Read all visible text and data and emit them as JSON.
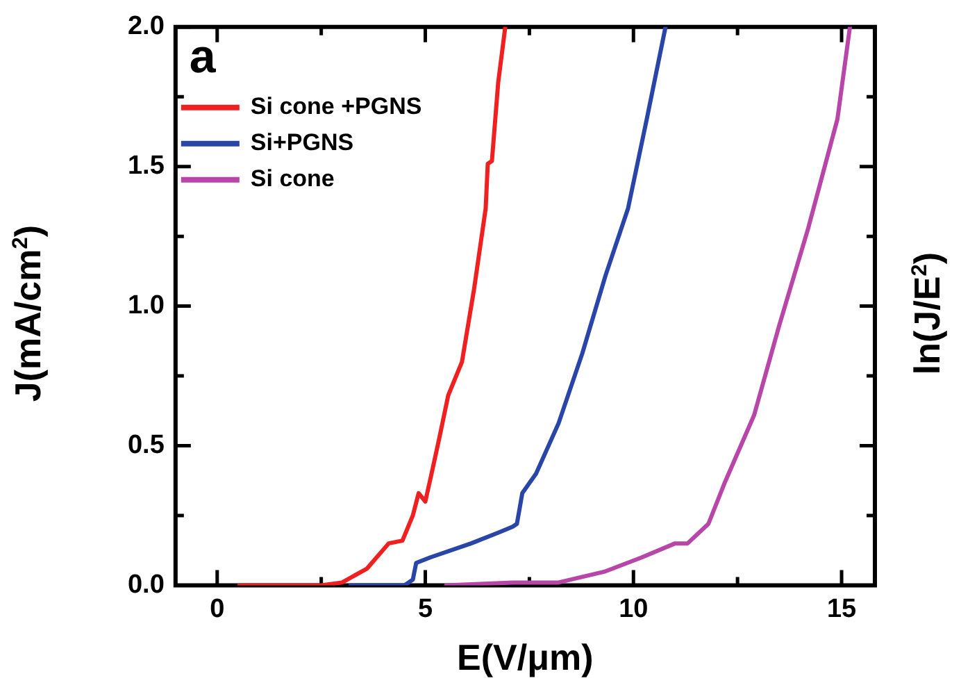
{
  "chart_data": {
    "type": "line",
    "xlabel": "E(V/μm)",
    "ylabel": "J(mA/cm$^{2}$)",
    "y2label": "ln(J/E$^{2}$)",
    "annotations": [
      "a"
    ],
    "xlim": [
      -1,
      15.8
    ],
    "xticks": [
      0,
      {
        "value": 2.5,
        "label": null
      },
      5,
      {
        "value": 7.5,
        "label": null
      },
      10,
      {
        "value": 12.5,
        "label": null
      },
      15
    ],
    "ylim": [
      0,
      2.0
    ],
    "yticks": [
      {
        "value": 0,
        "label": "0.0"
      },
      {
        "value": 0.25,
        "label": null
      },
      {
        "value": 0.5,
        "label": "0.5"
      },
      {
        "value": 0.75,
        "label": null
      },
      {
        "value": 1.0,
        "label": "1.0"
      },
      {
        "value": 1.25,
        "label": null
      },
      {
        "value": 1.5,
        "label": "1.5"
      },
      {
        "value": 1.75,
        "label": null
      },
      {
        "value": 2.0,
        "label": "2.0"
      }
    ],
    "grid": false,
    "legend": "top left",
    "marker": "none",
    "line_style": "solid",
    "series": [
      {
        "name": "Si cone +PGNS",
        "color": "#f02020",
        "x": [
          0.53,
          2.5,
          3.0,
          3.12,
          3.6,
          4.12,
          4.45,
          4.7,
          4.84,
          5.0,
          5.15,
          5.34,
          5.55,
          5.88,
          6.17,
          6.45,
          6.5,
          6.6,
          6.75,
          6.92
        ],
        "values": [
          0,
          0,
          0.01,
          0.02,
          0.06,
          0.15,
          0.16,
          0.25,
          0.33,
          0.3,
          0.4,
          0.53,
          0.68,
          0.8,
          1.06,
          1.35,
          1.51,
          1.52,
          1.8,
          2.0
        ]
      },
      {
        "name": "Si+PGNS",
        "color": "#2a45a8",
        "x": [
          3.2,
          4.5,
          4.7,
          4.78,
          5.12,
          6.1,
          6.78,
          7.1,
          7.2,
          7.33,
          7.66,
          8.2,
          8.77,
          9.33,
          9.87,
          10.32,
          10.77
        ],
        "values": [
          0,
          0,
          0.02,
          0.08,
          0.1,
          0.15,
          0.19,
          0.21,
          0.22,
          0.33,
          0.4,
          0.58,
          0.83,
          1.11,
          1.35,
          1.67,
          2.0
        ]
      },
      {
        "name": "Si cone",
        "color": "#b845a8",
        "x": [
          5.5,
          7.1,
          8.2,
          9.33,
          10.2,
          11.0,
          11.3,
          11.8,
          12.2,
          12.9,
          13.5,
          14.2,
          14.9,
          15.2
        ],
        "values": [
          0,
          0.01,
          0.01,
          0.05,
          0.1,
          0.15,
          0.15,
          0.22,
          0.37,
          0.61,
          0.93,
          1.28,
          1.67,
          2.0
        ]
      }
    ]
  }
}
